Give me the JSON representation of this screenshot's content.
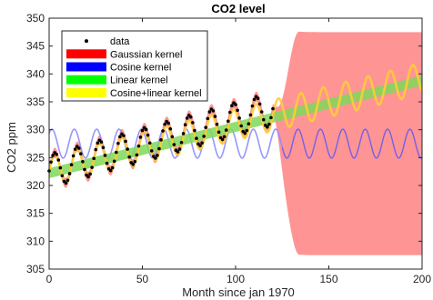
{
  "chart_data": {
    "type": "line",
    "title": "CO2 level",
    "xlabel": "Month since jan 1970",
    "ylabel": "CO2 ppm",
    "xlim": [
      0,
      200
    ],
    "ylim": [
      305,
      350
    ],
    "xticks": [
      "0",
      "50",
      "100",
      "150",
      "200"
    ],
    "yticks": [
      "305",
      "310",
      "315",
      "320",
      "325",
      "330",
      "335",
      "340",
      "345",
      "350"
    ],
    "grid": false,
    "legend_position": "top-left",
    "data_range_months": [
      0,
      120
    ],
    "legend": [
      {
        "key": "data",
        "label": "data",
        "color": "#000000",
        "marker": "dot"
      },
      {
        "key": "gauss",
        "label": "Gaussian kernel",
        "color": "#ff0000",
        "marker": "patch"
      },
      {
        "key": "cos",
        "label": "Cosine kernel",
        "color": "#0000ff",
        "marker": "patch"
      },
      {
        "key": "lin",
        "label": "Linear kernel",
        "color": "#00ff00",
        "marker": "patch"
      },
      {
        "key": "coslin",
        "label": "Cosine+linear kernel",
        "color": "#ffff00",
        "marker": "patch"
      }
    ],
    "series": [
      {
        "name": "data",
        "model": "trend 322.6 + 0.093*month, seasonal amplitude 3.0 ppm, period 12 months",
        "x_range": [
          0,
          120
        ],
        "trend_intercept": 322.6,
        "trend_slope": 0.093,
        "seasonal_amplitude": 3.0,
        "period_months": 12
      },
      {
        "name": "Gaussian kernel",
        "mean_follows_data_until": 120,
        "forecast_mean": 327.5,
        "band_halfwidth_far": 20
      },
      {
        "name": "Cosine kernel",
        "center": 327.5,
        "amplitude": 2.6,
        "period_months": 12
      },
      {
        "name": "Linear kernel",
        "intercept": 322.2,
        "slope": 0.083,
        "band_halfwidth": 0.9
      },
      {
        "name": "Cosine+linear kernel",
        "intercept": 322.6,
        "slope": 0.083,
        "amplitude": 2.8,
        "period_months": 12
      }
    ]
  },
  "colors": {
    "data": "#000000",
    "gauss_band": "#ff9494",
    "cos_line": "#8c8cff",
    "cos_line_dark": "#7a52d6",
    "lin_band": "#7fd85a",
    "coslin_line": "#ffcc3a"
  }
}
